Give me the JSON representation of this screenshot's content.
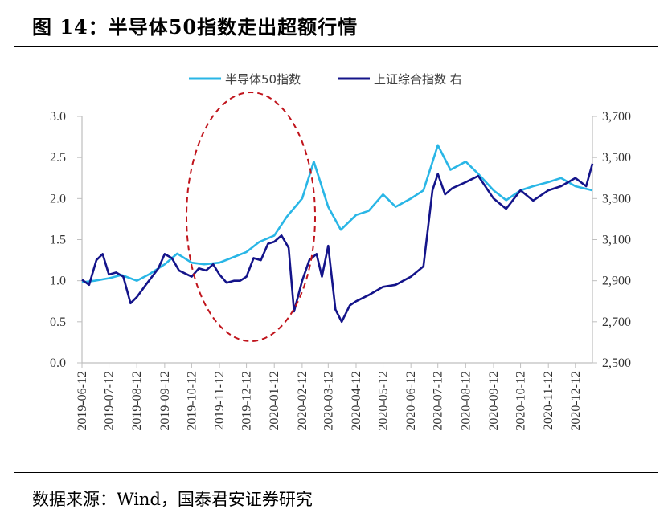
{
  "title": "图 14：半导体50指数走出超额行情",
  "source": "数据来源：Wind，国泰君安证券研究",
  "colors": {
    "semi": "#29b6e6",
    "sse": "#14148a",
    "annotation": "#c0141c",
    "axis": "#bfbfbf"
  },
  "chart_data": {
    "type": "line",
    "x_ticks": [
      "2019-06-12",
      "2019-07-12",
      "2019-08-12",
      "2019-09-12",
      "2019-10-12",
      "2019-11-12",
      "2019-12-12",
      "2020-01-12",
      "2020-02-12",
      "2020-03-12",
      "2020-04-12",
      "2020-05-12",
      "2020-06-12",
      "2020-07-12",
      "2020-08-12",
      "2020-09-12",
      "2020-10-12",
      "2020-11-12",
      "2020-12-12"
    ],
    "left_axis": {
      "ylim": [
        0,
        3.0
      ],
      "ticks": [
        "0.0",
        "0.5",
        "1.0",
        "1.5",
        "2.0",
        "2.5",
        "3.0"
      ]
    },
    "right_axis": {
      "ylim": [
        2500,
        3700
      ],
      "ticks": [
        "2,500",
        "2,700",
        "2,900",
        "3,100",
        "3,300",
        "3,500",
        "3,700"
      ]
    },
    "annotation": "dashed red ellipse highlighting 2019-10 to 2020-02",
    "series": [
      {
        "name": "半导体50指数",
        "axis": "left",
        "points": [
          [
            "2019-06-12",
            0.98
          ],
          [
            "2019-06-26",
            1.0
          ],
          [
            "2019-07-12",
            1.03
          ],
          [
            "2019-07-26",
            1.07
          ],
          [
            "2019-08-12",
            1.0
          ],
          [
            "2019-08-26",
            1.08
          ],
          [
            "2019-09-12",
            1.2
          ],
          [
            "2019-09-26",
            1.33
          ],
          [
            "2019-10-12",
            1.22
          ],
          [
            "2019-10-26",
            1.2
          ],
          [
            "2019-11-12",
            1.22
          ],
          [
            "2019-11-26",
            1.28
          ],
          [
            "2019-12-12",
            1.35
          ],
          [
            "2019-12-26",
            1.47
          ],
          [
            "2020-01-12",
            1.55
          ],
          [
            "2020-01-26",
            1.78
          ],
          [
            "2020-02-12",
            2.0
          ],
          [
            "2020-02-25",
            2.45
          ],
          [
            "2020-03-12",
            1.9
          ],
          [
            "2020-03-26",
            1.62
          ],
          [
            "2020-04-12",
            1.8
          ],
          [
            "2020-04-26",
            1.85
          ],
          [
            "2020-05-12",
            2.05
          ],
          [
            "2020-05-26",
            1.9
          ],
          [
            "2020-06-12",
            2.0
          ],
          [
            "2020-06-26",
            2.1
          ],
          [
            "2020-07-12",
            2.65
          ],
          [
            "2020-07-26",
            2.35
          ],
          [
            "2020-08-12",
            2.45
          ],
          [
            "2020-08-26",
            2.3
          ],
          [
            "2020-09-12",
            2.1
          ],
          [
            "2020-09-26",
            1.98
          ],
          [
            "2020-10-12",
            2.1
          ],
          [
            "2020-10-26",
            2.15
          ],
          [
            "2020-11-12",
            2.2
          ],
          [
            "2020-11-26",
            2.25
          ],
          [
            "2020-12-12",
            2.15
          ],
          [
            "2020-12-31",
            2.1
          ]
        ]
      },
      {
        "name": "上证综合指数 右",
        "axis": "right",
        "points": [
          [
            "2019-06-12",
            2905
          ],
          [
            "2019-06-20",
            2880
          ],
          [
            "2019-06-28",
            3000
          ],
          [
            "2019-07-05",
            3030
          ],
          [
            "2019-07-12",
            2930
          ],
          [
            "2019-07-20",
            2940
          ],
          [
            "2019-07-28",
            2920
          ],
          [
            "2019-08-05",
            2790
          ],
          [
            "2019-08-12",
            2820
          ],
          [
            "2019-08-22",
            2880
          ],
          [
            "2019-09-05",
            2960
          ],
          [
            "2019-09-12",
            3030
          ],
          [
            "2019-09-20",
            3010
          ],
          [
            "2019-09-28",
            2950
          ],
          [
            "2019-10-12",
            2920
          ],
          [
            "2019-10-20",
            2960
          ],
          [
            "2019-10-28",
            2950
          ],
          [
            "2019-11-05",
            2980
          ],
          [
            "2019-11-12",
            2930
          ],
          [
            "2019-11-20",
            2890
          ],
          [
            "2019-11-28",
            2900
          ],
          [
            "2019-12-05",
            2900
          ],
          [
            "2019-12-12",
            2920
          ],
          [
            "2019-12-20",
            3010
          ],
          [
            "2019-12-28",
            3000
          ],
          [
            "2020-01-05",
            3080
          ],
          [
            "2020-01-12",
            3090
          ],
          [
            "2020-01-20",
            3120
          ],
          [
            "2020-01-28",
            3060
          ],
          [
            "2020-02-03",
            2750
          ],
          [
            "2020-02-12",
            2900
          ],
          [
            "2020-02-20",
            3000
          ],
          [
            "2020-02-28",
            3030
          ],
          [
            "2020-03-05",
            2920
          ],
          [
            "2020-03-12",
            3070
          ],
          [
            "2020-03-20",
            2760
          ],
          [
            "2020-03-27",
            2700
          ],
          [
            "2020-04-05",
            2780
          ],
          [
            "2020-04-12",
            2800
          ],
          [
            "2020-04-26",
            2830
          ],
          [
            "2020-05-12",
            2870
          ],
          [
            "2020-05-26",
            2880
          ],
          [
            "2020-06-12",
            2920
          ],
          [
            "2020-06-26",
            2970
          ],
          [
            "2020-07-06",
            3340
          ],
          [
            "2020-07-12",
            3420
          ],
          [
            "2020-07-20",
            3320
          ],
          [
            "2020-07-28",
            3350
          ],
          [
            "2020-08-12",
            3380
          ],
          [
            "2020-08-26",
            3410
          ],
          [
            "2020-09-12",
            3300
          ],
          [
            "2020-09-26",
            3250
          ],
          [
            "2020-10-12",
            3340
          ],
          [
            "2020-10-26",
            3290
          ],
          [
            "2020-11-12",
            3340
          ],
          [
            "2020-11-26",
            3360
          ],
          [
            "2020-12-12",
            3400
          ],
          [
            "2020-12-24",
            3360
          ],
          [
            "2020-12-31",
            3470
          ]
        ]
      }
    ]
  }
}
